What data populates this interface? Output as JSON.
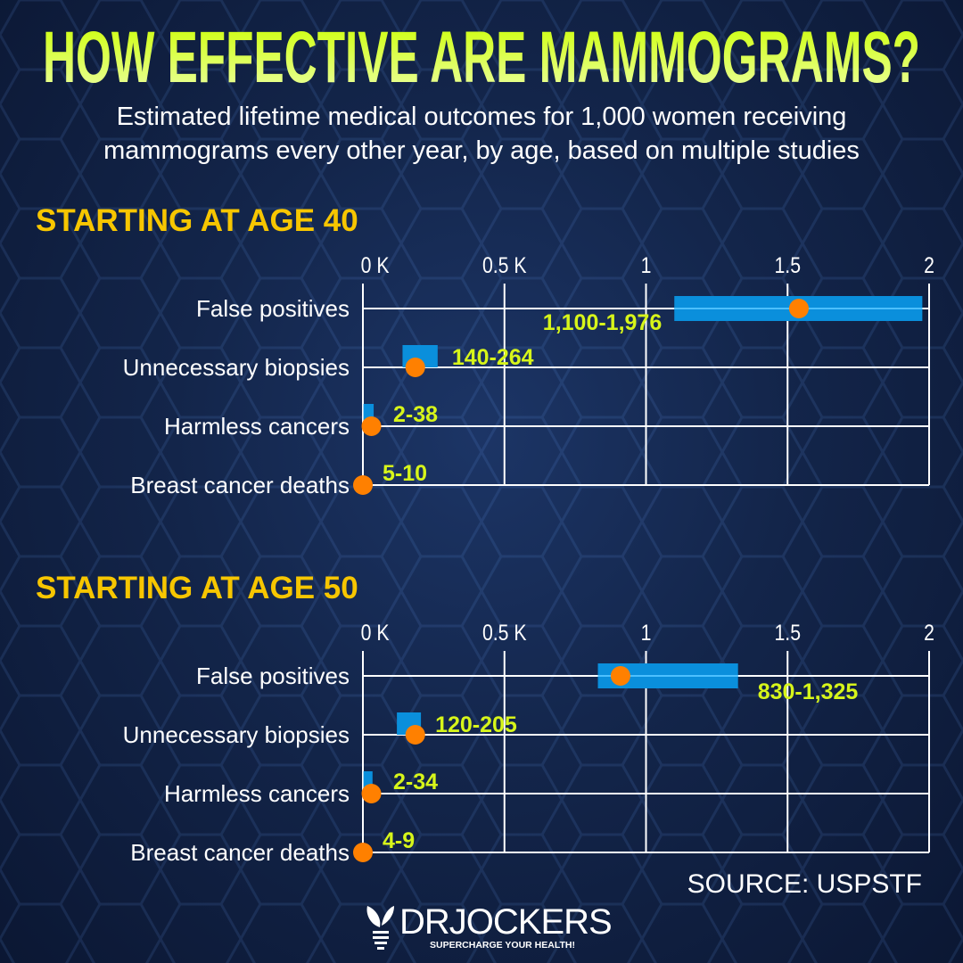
{
  "title": "HOW EFFECTIVE ARE MAMMOGRAMS?",
  "subtitle_line1": "Estimated lifetime medical outcomes for 1,000 women receiving",
  "subtitle_line2": "mammograms every other year, by age, based on multiple studies",
  "colors": {
    "title": "#ccff00",
    "section": "#f7c600",
    "bar": "#0a8fdc",
    "dot": "#ff8000",
    "label": "#d7f51a",
    "grid": "#ffffff",
    "background": "#13254a"
  },
  "chart_data": [
    {
      "type": "range-dot",
      "title": "STARTING AT AGE 40",
      "xlim": [
        0,
        2000
      ],
      "grid": true,
      "tick_values": [
        0,
        500,
        1000,
        1500,
        2000
      ],
      "tick_labels": [
        "0 K",
        "0.5 K",
        "1",
        "1.5",
        "2"
      ],
      "categories": [
        "False positives",
        "Unnecessary biopsies",
        "Harmless cancers",
        "Breast cancer deaths"
      ],
      "ranges": [
        [
          1100,
          1976
        ],
        [
          140,
          264
        ],
        [
          2,
          38
        ],
        [
          5,
          10
        ]
      ],
      "points": [
        1540,
        185,
        30,
        0
      ],
      "range_labels": [
        "1,100-1,976",
        "140-264",
        "2-38",
        "5-10"
      ]
    },
    {
      "type": "range-dot",
      "title": "STARTING AT AGE 50",
      "xlim": [
        0,
        2000
      ],
      "grid": true,
      "tick_values": [
        0,
        500,
        1000,
        1500,
        2000
      ],
      "tick_labels": [
        "0 K",
        "0.5 K",
        "1",
        "1.5",
        "2"
      ],
      "categories": [
        "False positives",
        "Unnecessary biopsies",
        "Harmless cancers",
        "Breast cancer deaths"
      ],
      "ranges": [
        [
          830,
          1325
        ],
        [
          120,
          205
        ],
        [
          2,
          34
        ],
        [
          4,
          9
        ]
      ],
      "points": [
        910,
        185,
        30,
        0
      ],
      "range_labels": [
        "830-1,325",
        "120-205",
        "2-34",
        "4-9"
      ]
    }
  ],
  "source": "SOURCE: USPSTF",
  "logo": {
    "name": "DRJOCKERS",
    "tagline": "SUPERCHARGE YOUR HEALTH!"
  }
}
